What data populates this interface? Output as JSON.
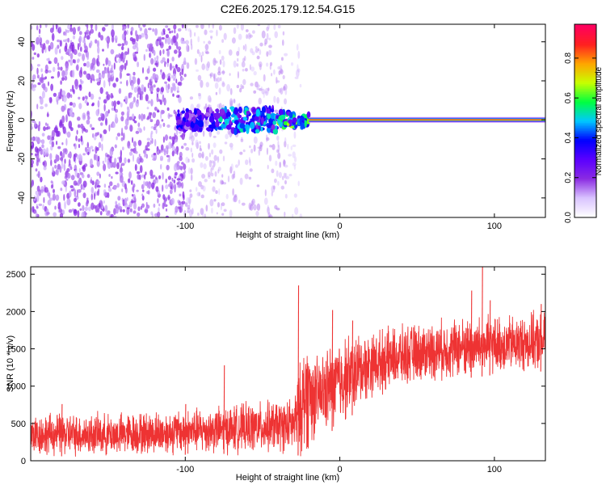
{
  "title": "C2E6.2025.179.12.54.G15",
  "chart_data": [
    {
      "type": "heatmap",
      "xlabel": "Height of straight line (km)",
      "ylabel": "Frequency (Hz)",
      "xlim": [
        -200,
        133
      ],
      "ylim": [
        -50,
        49
      ],
      "x_ticks": [
        -100,
        0,
        100
      ],
      "x_tick_labels": [
        "-100",
        "0",
        "100"
      ],
      "y_ticks": [
        -40,
        -20,
        0,
        20,
        40
      ],
      "y_tick_labels": [
        "-40",
        "-20",
        "0",
        "20",
        "40"
      ],
      "colorbar": {
        "label": "Normalized spectral amplitude",
        "range": [
          0,
          0.97
        ],
        "ticks": [
          0,
          0.2,
          0.4,
          0.6,
          0.8
        ],
        "tick_labels": [
          "0.0",
          "0.2",
          "0.4",
          "0.6",
          "0.8"
        ],
        "colormap": [
          "#ffffff",
          "#d9c2ff",
          "#8a2be2",
          "#5a00ff",
          "#0000ff",
          "#00c8ff",
          "#00ff40",
          "#c8ff00",
          "#ffa500",
          "#ff2020",
          "#ff0060"
        ]
      },
      "regions": [
        {
          "x_range": [
            -200,
            -100
          ],
          "description_amplitude": 0.08,
          "freq_spread": [
            -50,
            49
          ]
        },
        {
          "x_range": [
            -100,
            -35
          ],
          "description_amplitude": 0.05,
          "freq_spread": [
            -50,
            49
          ]
        },
        {
          "x_range": [
            -35,
            -25
          ],
          "description_amplitude": 0.02,
          "freq_spread": [
            -50,
            40
          ]
        }
      ],
      "signal_band": {
        "x_range": [
          -105,
          133
        ],
        "center_freq": 0,
        "segments": [
          {
            "x_range": [
              -105,
              -80
            ],
            "amplitude": 0.3,
            "width_hz": 10
          },
          {
            "x_range": [
              -80,
              -40
            ],
            "amplitude": 0.4,
            "width_hz": 12
          },
          {
            "x_range": [
              -40,
              -20
            ],
            "amplitude": 0.5,
            "width_hz": 8
          },
          {
            "x_range": [
              -20,
              133
            ],
            "amplitude": 0.9,
            "width_hz": 4
          }
        ]
      }
    },
    {
      "type": "line",
      "xlabel": "Height of straight line (km)",
      "ylabel": "SNR (10 * v/v)",
      "xlim": [
        -200,
        133
      ],
      "ylim": [
        0,
        2600
      ],
      "x_ticks": [
        -100,
        0,
        100
      ],
      "x_tick_labels": [
        "-100",
        "0",
        "100"
      ],
      "y_ticks": [
        0,
        500,
        1000,
        1500,
        2000,
        2500
      ],
      "y_tick_labels": [
        "0",
        "500",
        "1000",
        "1500",
        "2000",
        "2500"
      ],
      "series": [
        {
          "color": "#ee3333",
          "envelope": [
            {
              "x": -200,
              "low": 60,
              "high": 650
            },
            {
              "x": -150,
              "low": 60,
              "high": 640
            },
            {
              "x": -100,
              "low": 80,
              "high": 700
            },
            {
              "x": -60,
              "low": 100,
              "high": 780
            },
            {
              "x": -30,
              "low": 100,
              "high": 850
            },
            {
              "x": -25,
              "low": 50,
              "high": 1400
            },
            {
              "x": -22,
              "low": 80,
              "high": 1750
            },
            {
              "x": -15,
              "low": 300,
              "high": 1400
            },
            {
              "x": 0,
              "low": 450,
              "high": 1700
            },
            {
              "x": 20,
              "low": 850,
              "high": 1750
            },
            {
              "x": 50,
              "low": 1050,
              "high": 1850
            },
            {
              "x": 80,
              "low": 1100,
              "high": 1950
            },
            {
              "x": 100,
              "low": 1150,
              "high": 1950
            },
            {
              "x": 133,
              "low": 1200,
              "high": 2000
            }
          ],
          "spikes": [
            {
              "x": -180,
              "y": 760
            },
            {
              "x": -100,
              "y": 760
            },
            {
              "x": -75,
              "y": 1280
            },
            {
              "x": -27,
              "y": 2350
            },
            {
              "x": -5,
              "y": 2020
            },
            {
              "x": 8,
              "y": 1880
            },
            {
              "x": 85,
              "y": 2280
            },
            {
              "x": 92,
              "y": 2600
            },
            {
              "x": 97,
              "y": 2150
            },
            {
              "x": 130,
              "y": 2100
            }
          ]
        }
      ]
    }
  ]
}
